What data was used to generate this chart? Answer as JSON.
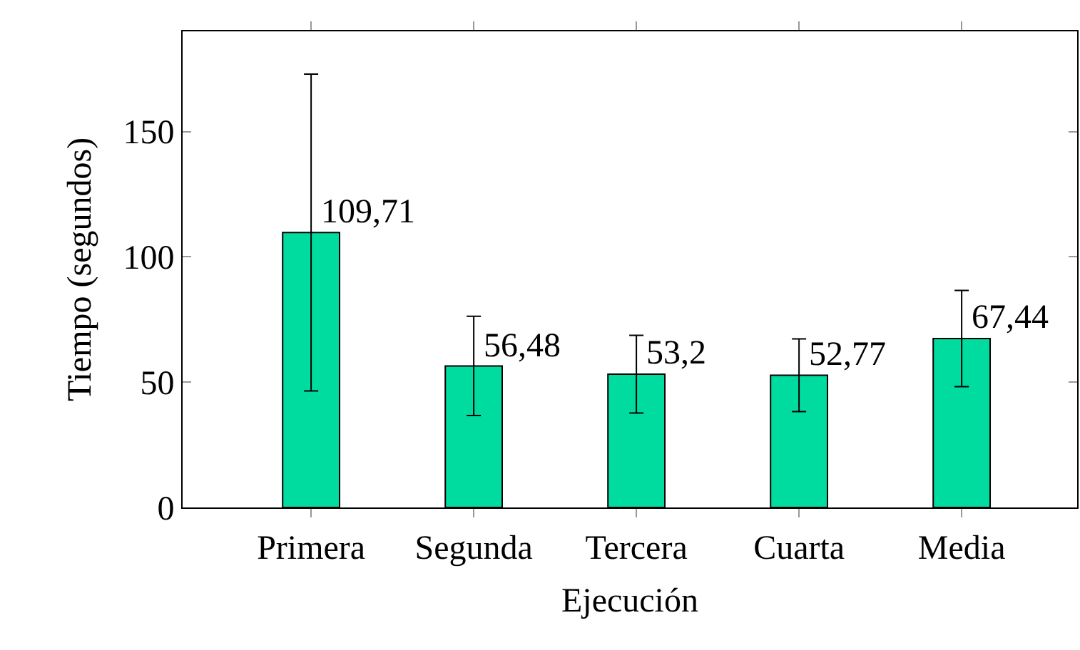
{
  "chart_data": {
    "type": "bar",
    "xlabel": "Ejecución",
    "ylabel": "Tiempo (segundos)",
    "categories": [
      "Primera",
      "Segunda",
      "Tercera",
      "Cuarta",
      "Media"
    ],
    "values": [
      109.71,
      56.48,
      53.2,
      52.77,
      67.44
    ],
    "errors": [
      63.2,
      19.8,
      15.5,
      14.5,
      19.2
    ],
    "value_labels": [
      "109,71",
      "56,48",
      "53,2",
      "52,77",
      "67,44"
    ],
    "color": "#00dca0",
    "ylim": [
      0,
      190
    ],
    "yticks": [
      0,
      50,
      100,
      150
    ],
    "legend": false
  }
}
